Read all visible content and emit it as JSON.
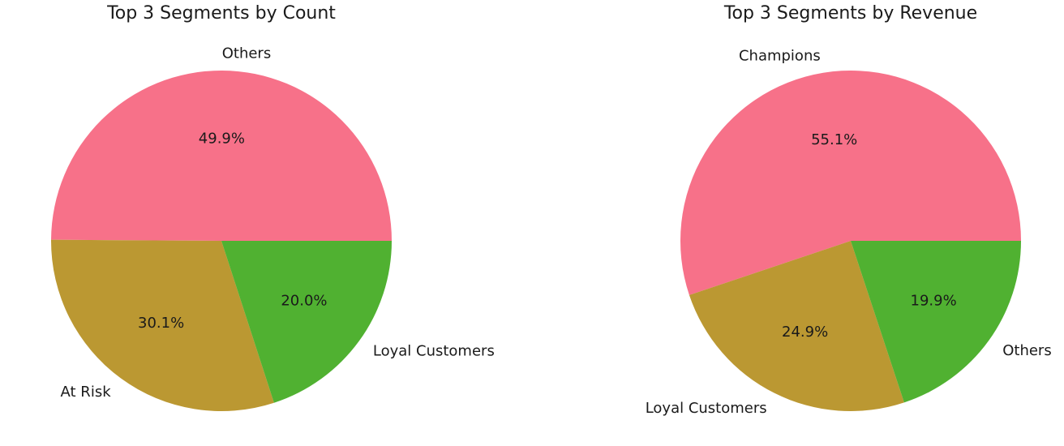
{
  "chart_data": [
    {
      "type": "pie",
      "title": "Top 3 Segments by Count",
      "labels": [
        "Others",
        "At Risk",
        "Loyal Customers"
      ],
      "values": [
        49.9,
        30.1,
        20.0
      ],
      "autopct": [
        "49.9%",
        "30.1%",
        "20.0%"
      ],
      "colors": [
        "#f77189",
        "#bb9832",
        "#50b131"
      ],
      "start_angle_deg": 0,
      "direction": "counterclockwise"
    },
    {
      "type": "pie",
      "title": "Top 3 Segments by Revenue",
      "labels": [
        "Champions",
        "Loyal Customers",
        "Others"
      ],
      "values": [
        55.1,
        24.9,
        19.9
      ],
      "autopct": [
        "55.1%",
        "24.9%",
        "19.9%"
      ],
      "colors": [
        "#f77189",
        "#bb9832",
        "#50b131"
      ],
      "start_angle_deg": 0,
      "direction": "counterclockwise"
    }
  ]
}
